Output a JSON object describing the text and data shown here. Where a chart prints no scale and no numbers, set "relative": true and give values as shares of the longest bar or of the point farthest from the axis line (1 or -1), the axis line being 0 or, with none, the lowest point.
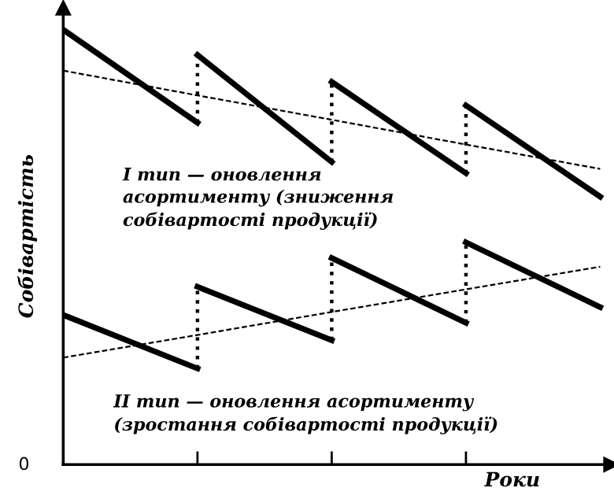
{
  "chart_data": {
    "type": "line",
    "relative": true,
    "ylabel": "Собівартість",
    "xlabel": "Роки",
    "categories": [
      null,
      null,
      null,
      null,
      null
    ],
    "grid": false,
    "legend": false,
    "marker": "none",
    "series": [
      {
        "color": "#000000",
        "line_style": "solid",
        "values": [
          1.0,
          0.786,
          null,
          null,
          null
        ]
      },
      {
        "color": "#000000",
        "line_style": "solid",
        "values": [
          null,
          0.942,
          0.696,
          null,
          null
        ]
      },
      {
        "color": "#000000",
        "line_style": "solid",
        "values": [
          null,
          null,
          0.88,
          0.67,
          null
        ]
      },
      {
        "color": "#000000",
        "line_style": "solid",
        "values": [
          null,
          null,
          null,
          0.826,
          0.616
        ]
      },
      {
        "color": "#000000",
        "line_style": "dashed",
        "values": [
          0.906,
          0.849,
          0.793,
          0.736,
          0.68
        ]
      },
      {
        "color": "#000000",
        "line_style": "solid",
        "values": [
          0.344,
          0.221,
          null,
          null,
          null
        ]
      },
      {
        "color": "#000000",
        "line_style": "solid",
        "values": [
          null,
          0.409,
          0.286,
          null,
          null
        ]
      },
      {
        "color": "#000000",
        "line_style": "solid",
        "values": [
          null,
          null,
          0.475,
          0.326,
          null
        ]
      },
      {
        "color": "#000000",
        "line_style": "solid",
        "values": [
          null,
          null,
          null,
          0.511,
          0.362
        ]
      },
      {
        "color": "#000000",
        "line_style": "dashed",
        "values": [
          0.246,
          0.298,
          0.351,
          0.403,
          0.455
        ]
      }
    ],
    "annotations": [
      "I тип — оновлення\nасортименту (зниження\nсобівартості продукції)",
      "II тип — оновлення асортименту\n(зростання собівартості продукції)",
      "0"
    ]
  }
}
